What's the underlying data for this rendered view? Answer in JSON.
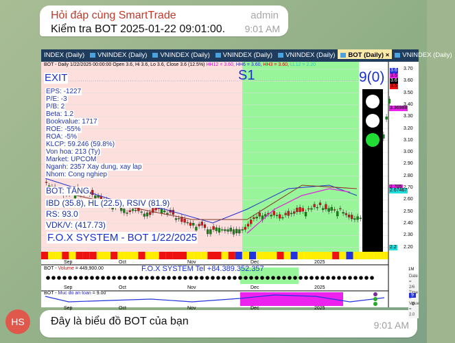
{
  "message1": {
    "sender": "Hỏi đáp cùng SmartTrade",
    "role": "admin",
    "text": "Kiểm tra BOT 2025-01-22 09:01:00.",
    "time": "9:01 AM"
  },
  "chart_image": {
    "tabs": [
      "INDEX (Daily)",
      "VNINDEX (Daily)",
      "VNINDEX (Daily)",
      "VNINDEX (Daily)",
      "VNINDEX (Daily)",
      "BOT (Daily)",
      "VNINDEX (Daily)"
    ],
    "active_tab": "BOT (Daily)",
    "header": {
      "main": "BOT - Daily 1/22/2025 00:00:00 Open 3.6, Hi 3.6, Lo 3.6, Close 3.6 (12.5%)",
      "hh12": "HH12 = 3.60,",
      "hh6": "HH6 = 3.60,",
      "hh3": "HH3 = 3.60,",
      "ll12": "LL12 = 2.20"
    },
    "exit_label": "EXIT",
    "s1_label": "S1",
    "count_label": "9(0)",
    "fundamentals": [
      "EPS: -1227",
      "P/E: -3",
      "P/B: 2",
      "Beta: 1.2",
      "Bookvalue: 1717",
      "ROE: -55%",
      "ROA: -5%",
      "KLCP: 59.246 (59.8%)",
      "Von hoa: 213 (Ty)",
      "Market: UPCOM",
      "Nganh: 2357 Xay dung, xay lap",
      "Nhom: Cong nghiep"
    ],
    "trend": "BOT: TĂNG",
    "ibd": "IBD (35.8), HL (22.5), RSIV (81.9)",
    "rs": "RS: 93.0",
    "vdk": "VDK/V:  (417.73)",
    "system_title": "F.O.X SYSTEM - BOT 1/22/2025",
    "price_axis": [
      "3.70",
      "3.60",
      "3.50",
      "3.40",
      "3.30",
      "3.20",
      "3.10",
      "3.00",
      "2.90",
      "2.80",
      "2.70",
      "2.60",
      "2.50",
      "2.40",
      "2.30",
      "2.20"
    ],
    "price_tags": [
      {
        "text": "3.6",
        "color": "#2233dd"
      },
      {
        "text": "3.6",
        "color": "#ee22ee"
      },
      {
        "text": "3.6",
        "color": "#000000"
      },
      {
        "text": "3.6",
        "color": "#ee1111"
      },
      {
        "text": "3.36988",
        "color": "#ee22ee"
      },
      {
        "text": "2.705",
        "color": "#ee22ee"
      },
      {
        "text": "2.67467",
        "color": "#22dddd"
      },
      {
        "text": "2.2",
        "color": "#22dddd"
      }
    ],
    "months": [
      "Sep",
      "Oct",
      "Nov",
      "Dec",
      "2025"
    ],
    "volume": {
      "label": "BOT - ",
      "name": "Volume",
      "value": " = 449,900.00",
      "contact": "F.O.X SYSTEM Tel +84.389.352.357",
      "axis": "1M",
      "tooltip": [
        "Date = 2/6",
        "Time =",
        "Value = 2.0"
      ]
    },
    "safety": {
      "label": "BOT - ",
      "name": "Muc do an toan",
      "value": " = 9.00",
      "tag": "9",
      "axis": "0"
    }
  },
  "message2": {
    "avatar": "HS",
    "text": "Đây là biểu đồ BOT của bạn",
    "time": "9:01 AM"
  }
}
